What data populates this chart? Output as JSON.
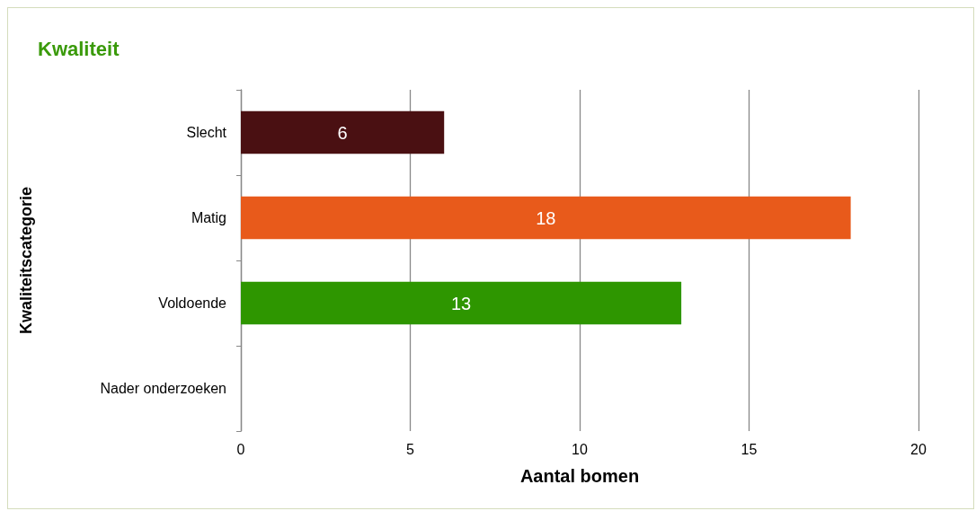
{
  "chart_data": {
    "type": "bar",
    "orientation": "horizontal",
    "title": "Kwaliteit",
    "xlabel": "Aantal bomen",
    "ylabel": "Kwaliteitscategorie",
    "categories": [
      "Slecht",
      "Matig",
      "Voldoende",
      "Nader onderzoeken"
    ],
    "values": [
      6,
      18,
      13,
      null
    ],
    "colors": [
      "#4a1012",
      "#e85a1b",
      "#2e9600",
      "#888888"
    ],
    "xlim": [
      0,
      20
    ],
    "xticks": [
      0,
      5,
      10,
      15,
      20
    ],
    "grid": "x",
    "data_labels": true
  }
}
